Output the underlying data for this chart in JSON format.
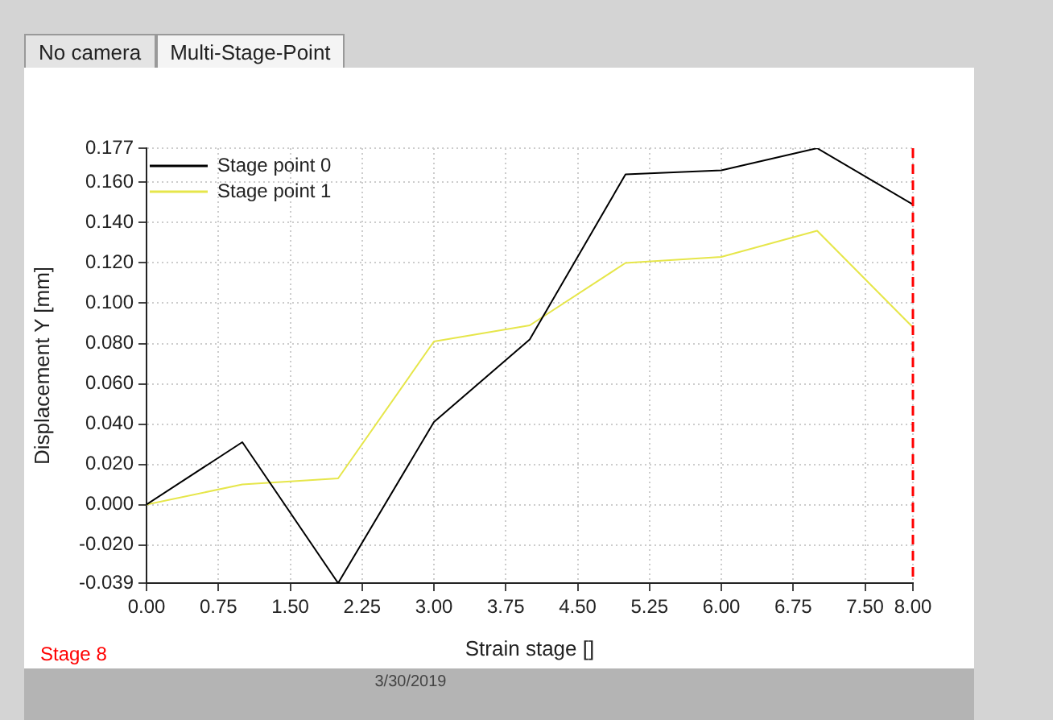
{
  "chart_data": {
    "type": "line",
    "xlabel": "Strain stage []",
    "ylabel": "Displacement Y [mm]",
    "annotations": [
      "No camera",
      "Multi-Stage-Point",
      "3/30/2019"
    ],
    "x": [
      0,
      1,
      2,
      3,
      4,
      5,
      6,
      7,
      8
    ],
    "series": [
      {
        "name": "Stage point 0",
        "color": "#000000",
        "values": [
          0,
          0.031,
          -0.039,
          0.041,
          0.082,
          0.164,
          0.166,
          0.177,
          0.149
        ]
      },
      {
        "name": "Stage point 1",
        "color": "#e6e64a",
        "values": [
          0,
          0.01,
          0.013,
          0.081,
          0.089,
          0.12,
          0.123,
          0.136,
          0.088
        ]
      }
    ],
    "xlim": [
      0,
      8
    ],
    "xticks": [
      {
        "value": 0,
        "label": "0.00"
      },
      0.75,
      {
        "value": 1.5,
        "label": "1.50"
      },
      2.25,
      {
        "value": 3,
        "label": "3.00"
      },
      3.75,
      {
        "value": 4.5,
        "label": "4.50"
      },
      5.25,
      {
        "value": 6,
        "label": "6.00"
      },
      6.75,
      {
        "value": 7.5,
        "label": "7.50"
      },
      {
        "value": 8,
        "label": "8.00"
      }
    ],
    "ylim": [
      -0.039,
      0.177
    ],
    "yticks": [
      -0.039,
      {
        "value": -0.02,
        "label": "-0.020"
      },
      {
        "value": 0,
        "label": "0.000"
      },
      {
        "value": 0.02,
        "label": "0.020"
      },
      {
        "value": 0.04,
        "label": "0.040"
      },
      {
        "value": 0.06,
        "label": "0.060"
      },
      {
        "value": 0.08,
        "label": "0.080"
      },
      {
        "value": 0.1,
        "label": "0.100"
      },
      {
        "value": 0.12,
        "label": "0.120"
      },
      {
        "value": 0.14,
        "label": "0.140"
      },
      {
        "value": 0.16,
        "label": "0.160"
      },
      0.177
    ],
    "ref_lines": [
      {
        "axis": "x",
        "value": 8,
        "label": "Stage 8",
        "color": "#ff0000",
        "line_style": "dashed"
      }
    ],
    "grid": true,
    "legend": "top left",
    "marker": "none",
    "line_style": "solid"
  }
}
